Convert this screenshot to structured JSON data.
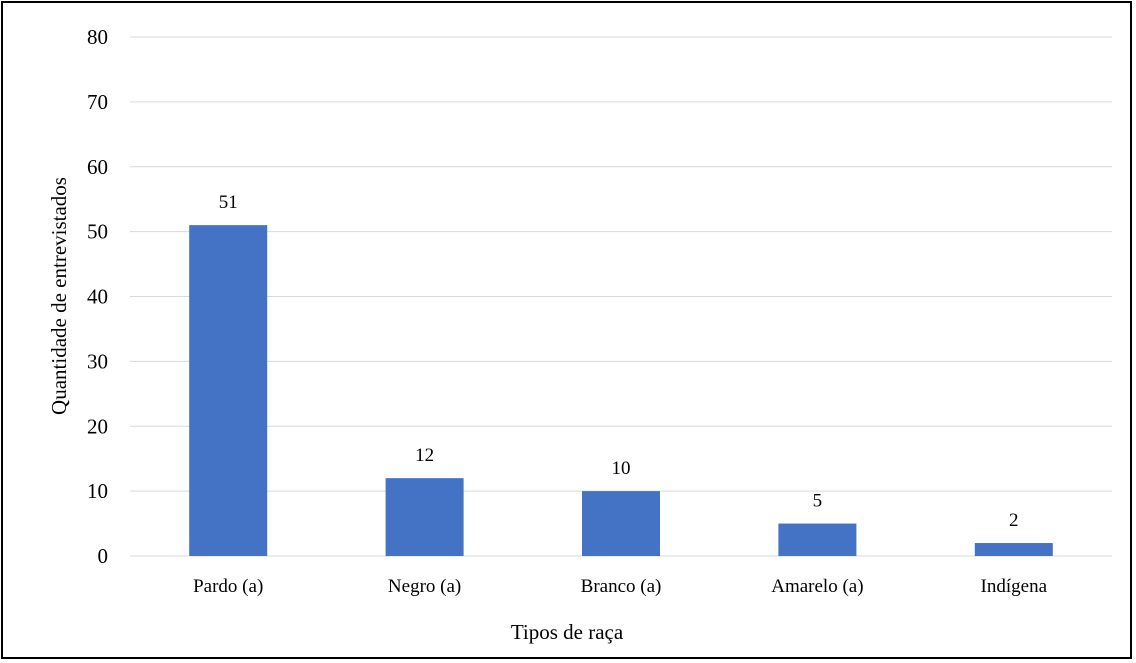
{
  "chart_data": {
    "type": "bar",
    "title": "",
    "xlabel": "Tipos de raça",
    "ylabel": "Quantidade de entrevistados",
    "categories": [
      "Pardo (a)",
      "Negro (a)",
      "Branco (a)",
      "Amarelo (a)",
      "Indígena"
    ],
    "values": [
      51,
      12,
      10,
      5,
      2
    ],
    "data_labels": [
      "51",
      "12",
      "10",
      "5",
      "2"
    ],
    "ylim": [
      0,
      80
    ],
    "yticks": [
      0,
      10,
      20,
      30,
      40,
      50,
      60,
      70,
      80
    ],
    "ytick_labels": [
      "0",
      "10",
      "20",
      "30",
      "40",
      "50",
      "60",
      "70",
      "80"
    ],
    "grid": true,
    "legend": "none",
    "bar_color": "#4472c4"
  }
}
